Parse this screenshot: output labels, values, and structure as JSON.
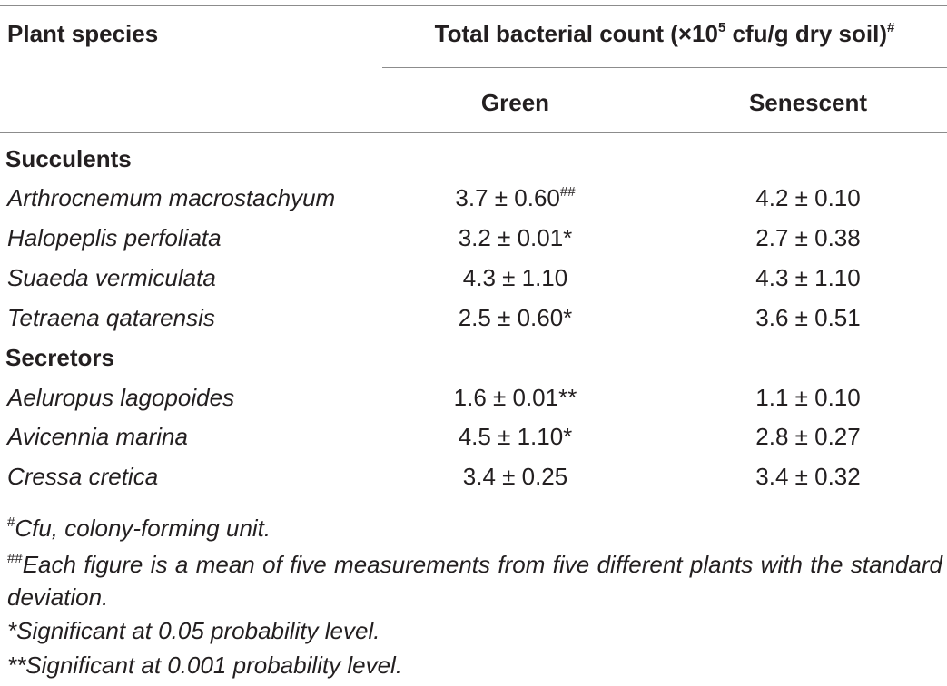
{
  "header": {
    "species_label": "Plant species",
    "count_label_pre": "Total bacterial count (×10",
    "count_label_exp": "5",
    "count_label_post": " cfu/g dry soil)",
    "count_label_mark": "#",
    "green_label": "Green",
    "senescent_label": "Senescent"
  },
  "groups": [
    {
      "name": "Succulents",
      "rows": [
        {
          "species": "Arthrocnemum macrostachyum",
          "green": "3.7 ± 0.60",
          "green_mark": "##",
          "senescent": "4.2 ± 0.10"
        },
        {
          "species": "Halopeplis perfoliata",
          "green": "3.2 ± 0.01*",
          "green_mark": "",
          "senescent": "2.7 ± 0.38"
        },
        {
          "species": "Suaeda vermiculata",
          "green": "4.3 ± 1.10",
          "green_mark": "",
          "senescent": "4.3 ± 1.10"
        },
        {
          "species": "Tetraena qatarensis",
          "green": "2.5 ± 0.60*",
          "green_mark": "",
          "senescent": "3.6 ± 0.51"
        }
      ]
    },
    {
      "name": "Secretors",
      "rows": [
        {
          "species": "Aeluropus lagopoides",
          "green": "1.6 ± 0.01**",
          "green_mark": "",
          "senescent": "1.1 ± 0.10"
        },
        {
          "species": "Avicennia marina",
          "green": "4.5 ± 1.10*",
          "green_mark": "",
          "senescent": "2.8 ± 0.27"
        },
        {
          "species": "Cressa cretica",
          "green": "3.4 ± 0.25",
          "green_mark": "",
          "senescent": "3.4 ± 0.32"
        }
      ]
    }
  ],
  "footnotes": {
    "fn1_mark": "#",
    "fn1_text": "Cfu, colony-forming unit.",
    "fn2_mark": "##",
    "fn2_text": "Each figure is a mean of five measurements from five different plants with the standard deviation.",
    "fn3_text": "*Significant at 0.05 probability level.",
    "fn4_text": "**Significant at 0.001 probability level."
  }
}
